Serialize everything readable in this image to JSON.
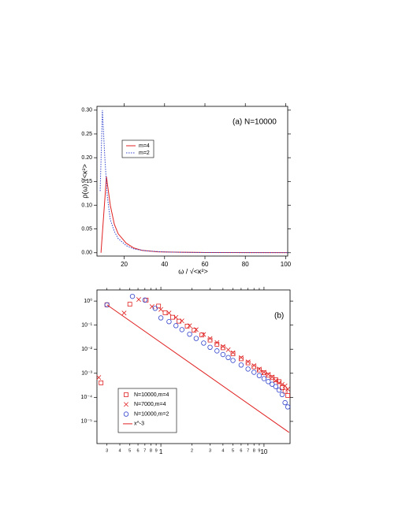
{
  "chart_data": [
    {
      "type": "line",
      "annotation": "(a) N=10000",
      "x_label": "ω / √<κ²>",
      "y_label": "ρ(ω) √<κ²>",
      "xlim": [
        6.5,
        101
      ],
      "xticks": [
        20,
        40,
        60,
        80,
        100
      ],
      "ylim": [
        -0.007,
        0.308
      ],
      "yticks": [
        {
          "value": 0,
          "label": "0.00"
        },
        {
          "value": 0.05,
          "label": "0.05"
        },
        {
          "value": 0.1,
          "label": "0.10"
        },
        {
          "value": 0.15,
          "label": "0.15"
        },
        {
          "value": 0.2,
          "label": "0.20"
        },
        {
          "value": 0.25,
          "label": "0.25"
        },
        {
          "value": 0.3,
          "label": "0.30"
        }
      ],
      "series": [
        {
          "name": "m=4",
          "color": "#e02020",
          "linestyle": "solid",
          "x": [
            8.5,
            11.2,
            13.1,
            15.1,
            17,
            21,
            24.8,
            28.8,
            36.6,
            48,
            60,
            101
          ],
          "values": [
            0,
            0.16,
            0.1,
            0.06,
            0.04,
            0.02,
            0.01,
            0.005,
            0.002,
            0.001,
            0.0005,
            0.0003
          ]
        },
        {
          "name": "m=2",
          "color": "#3344cc",
          "linestyle": "dotted",
          "x": [
            8.1,
            9.2,
            10.4,
            11.6,
            13.1,
            15.1,
            17,
            21,
            24.8,
            30.7,
            40.5,
            56,
            101
          ],
          "values": [
            0.13,
            0.3,
            0.2,
            0.12,
            0.07,
            0.045,
            0.03,
            0.015,
            0.008,
            0.004,
            0.0015,
            0.0005,
            0.0002
          ]
        }
      ]
    },
    {
      "type": "scatter",
      "annotation": "(b)",
      "log": true,
      "xlim": [
        0.24,
        17.9
      ],
      "xticks": [
        {
          "value": 0.3,
          "label": "3"
        },
        {
          "value": 0.4,
          "label": "4"
        },
        {
          "value": 0.5,
          "label": "5"
        },
        {
          "value": 0.6,
          "label": "6"
        },
        {
          "value": 0.7,
          "label": "7"
        },
        {
          "value": 0.8,
          "label": "8"
        },
        {
          "value": 0.9,
          "label": "9"
        },
        1,
        2,
        3,
        4,
        5,
        6,
        7,
        8,
        9,
        10
      ],
      "ylim": [
        1.2e-06,
        2.9
      ],
      "yticks": [
        {
          "value": 1e-05,
          "label": "10⁻⁵"
        },
        {
          "value": 0.0001,
          "label": "10⁻⁴"
        },
        {
          "value": 0.001,
          "label": "10⁻³"
        },
        {
          "value": 0.01,
          "label": "10⁻²"
        },
        {
          "value": 0.1,
          "label": "10⁻¹"
        },
        {
          "value": 1,
          "label": "10⁰"
        }
      ],
      "series": [
        {
          "name": "N=10000,m=4",
          "color": "#e02020",
          "marker": "square",
          "x": [
            0.263,
            0.3,
            0.5,
            0.72,
            0.95,
            1.1,
            1.3,
            1.5,
            1.8,
            2.1,
            2.5,
            3,
            3.5,
            4,
            5,
            6,
            7,
            8,
            9,
            10,
            11,
            12,
            13,
            14,
            15,
            16,
            17
          ],
          "values": [
            0.0004,
            0.7,
            0.74,
            1.1,
            0.62,
            0.329,
            0.213,
            0.146,
            0.091,
            0.061,
            0.039,
            0.024,
            0.0161,
            0.0115,
            0.0064,
            0.004,
            0.0027,
            0.00186,
            0.00137,
            0.00105,
            0.00083,
            0.00066,
            0.00054,
            0.00045,
            0.00025,
            0.00018,
            0.00012
          ]
        },
        {
          "name": "N=7000,m=4",
          "color": "#e02020",
          "marker": "x",
          "x": [
            0.25,
            0.44,
            0.61,
            0.82,
            1,
            1.2,
            1.4,
            1.6,
            1.9,
            2.2,
            2.6,
            3,
            3.5,
            4,
            4.5,
            5,
            6,
            7,
            8,
            9,
            10,
            11,
            12,
            13,
            14,
            15,
            16,
            17
          ],
          "values": [
            0.00067,
            0.32,
            1.16,
            0.59,
            0.45,
            0.32,
            0.21,
            0.15,
            0.095,
            0.065,
            0.041,
            0.028,
            0.019,
            0.013,
            0.0095,
            0.0072,
            0.0045,
            0.003,
            0.0021,
            0.0015,
            0.0011,
            0.0009,
            0.0007,
            0.0005,
            0.0004,
            0.00035,
            0.0003,
            0.00022
          ]
        },
        {
          "name": "N=10000,m=2",
          "color": "#3344cc",
          "marker": "circle",
          "x": [
            0.3,
            0.53,
            0.7,
            0.88,
            1,
            1.2,
            1.4,
            1.6,
            1.9,
            2.2,
            2.6,
            3,
            3.5,
            4,
            4.5,
            5,
            6,
            7,
            8,
            9,
            10,
            11,
            12,
            13,
            14,
            15,
            16,
            17
          ],
          "values": [
            0.7,
            1.57,
            1.1,
            0.5,
            0.2,
            0.14,
            0.095,
            0.065,
            0.042,
            0.028,
            0.018,
            0.012,
            0.0085,
            0.006,
            0.0045,
            0.0034,
            0.0022,
            0.0015,
            0.0011,
            0.0008,
            0.0006,
            0.00045,
            0.00035,
            0.00028,
            0.0002,
            0.00013,
            6e-05,
            4e-05
          ]
        },
        {
          "name": "x^-3",
          "color": "#e02020",
          "marker": "line",
          "x": [
            0.3,
            17.5
          ],
          "values": [
            0.7,
            3.5e-06
          ]
        }
      ]
    }
  ]
}
